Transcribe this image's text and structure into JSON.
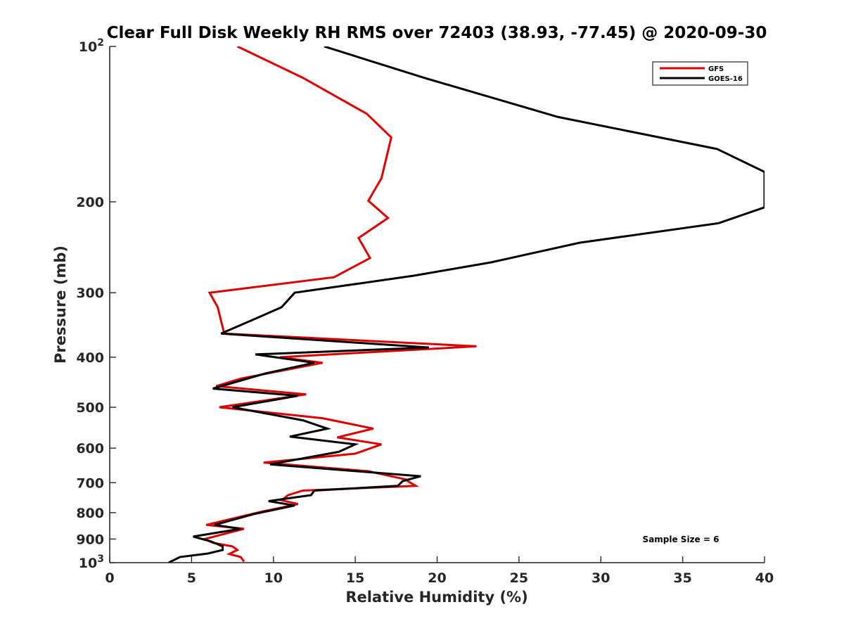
{
  "chart_data": {
    "type": "line",
    "title": "Clear Full Disk Weekly RH RMS over 72403 (38.93, -77.45) @ 2020-09-30",
    "xlabel": "Relative Humidity (%)",
    "ylabel": "Pressure (mb)",
    "xlim": [
      0,
      40
    ],
    "ylim": [
      100,
      1000
    ],
    "yscale": "log",
    "y_reversed": true,
    "xticks": [
      0,
      5,
      10,
      15,
      20,
      25,
      30,
      35,
      40
    ],
    "yticks": [
      {
        "value": 100,
        "label": "10",
        "sup": "2"
      },
      {
        "value": 200,
        "label": "200",
        "sup": ""
      },
      {
        "value": 300,
        "label": "300",
        "sup": ""
      },
      {
        "value": 400,
        "label": "400",
        "sup": ""
      },
      {
        "value": 500,
        "label": "500",
        "sup": ""
      },
      {
        "value": 600,
        "label": "600",
        "sup": ""
      },
      {
        "value": 700,
        "label": "700",
        "sup": ""
      },
      {
        "value": 800,
        "label": "800",
        "sup": ""
      },
      {
        "value": 900,
        "label": "900",
        "sup": ""
      },
      {
        "value": 1000,
        "label": "10",
        "sup": "3"
      }
    ],
    "grid": false,
    "legend": "top-right",
    "annotation": "Sample Size = 6",
    "series": [
      {
        "name": "GFS",
        "color": "#e00000",
        "points": [
          [
            7.8,
            100
          ],
          [
            11.8,
            115
          ],
          [
            15.7,
            135
          ],
          [
            17.2,
            150
          ],
          [
            16.6,
            180
          ],
          [
            15.8,
            199
          ],
          [
            17.0,
            215
          ],
          [
            15.2,
            235
          ],
          [
            15.9,
            257
          ],
          [
            13.7,
            280
          ],
          [
            6.1,
            300
          ],
          [
            6.6,
            320
          ],
          [
            6.8,
            340
          ],
          [
            7.0,
            360
          ],
          [
            22.4,
            381
          ],
          [
            10.4,
            400
          ],
          [
            13.0,
            410
          ],
          [
            8.0,
            440
          ],
          [
            6.5,
            455
          ],
          [
            12.0,
            472
          ],
          [
            6.7,
            500
          ],
          [
            13.0,
            525
          ],
          [
            16.1,
            550
          ],
          [
            13.9,
            572
          ],
          [
            16.6,
            590
          ],
          [
            15.0,
            615
          ],
          [
            9.4,
            640
          ],
          [
            15.8,
            665
          ],
          [
            18.1,
            690
          ],
          [
            18.2,
            695
          ],
          [
            18.7,
            710
          ],
          [
            11.8,
            725
          ],
          [
            10.9,
            740
          ],
          [
            10.5,
            757
          ],
          [
            11.5,
            770
          ],
          [
            9.4,
            795
          ],
          [
            5.9,
            845
          ],
          [
            8.2,
            860
          ],
          [
            5.8,
            900
          ],
          [
            6.3,
            915
          ],
          [
            7.5,
            930
          ],
          [
            7.8,
            945
          ],
          [
            7.3,
            962
          ],
          [
            8.0,
            975
          ],
          [
            8.2,
            995
          ]
        ]
      },
      {
        "name": "GOES-16",
        "color": "#000000",
        "points": [
          [
            13.1,
            100
          ],
          [
            19.2,
            115
          ],
          [
            27.4,
            137
          ],
          [
            37.1,
            158
          ],
          [
            40.0,
            175
          ],
          [
            40.0,
            205
          ],
          [
            37.2,
            220
          ],
          [
            28.7,
            240
          ],
          [
            23.3,
            262
          ],
          [
            18.6,
            278
          ],
          [
            11.3,
            300
          ],
          [
            10.5,
            320
          ],
          [
            8.6,
            340
          ],
          [
            6.8,
            360
          ],
          [
            19.5,
            383
          ],
          [
            8.9,
            395
          ],
          [
            12.5,
            410
          ],
          [
            9.5,
            430
          ],
          [
            6.3,
            460
          ],
          [
            11.5,
            475
          ],
          [
            7.5,
            500
          ],
          [
            11.8,
            530
          ],
          [
            13.3,
            550
          ],
          [
            11.0,
            570
          ],
          [
            15.0,
            590
          ],
          [
            14.0,
            610
          ],
          [
            9.8,
            645
          ],
          [
            19.0,
            680
          ],
          [
            17.9,
            695
          ],
          [
            17.6,
            710
          ],
          [
            12.5,
            725
          ],
          [
            12.3,
            740
          ],
          [
            9.7,
            760
          ],
          [
            11.3,
            775
          ],
          [
            8.8,
            805
          ],
          [
            6.4,
            845
          ],
          [
            8.0,
            860
          ],
          [
            5.1,
            890
          ],
          [
            6.2,
            910
          ],
          [
            6.9,
            930
          ],
          [
            6.9,
            945
          ],
          [
            6.0,
            960
          ],
          [
            4.3,
            975
          ],
          [
            3.6,
            1000
          ]
        ]
      }
    ]
  }
}
